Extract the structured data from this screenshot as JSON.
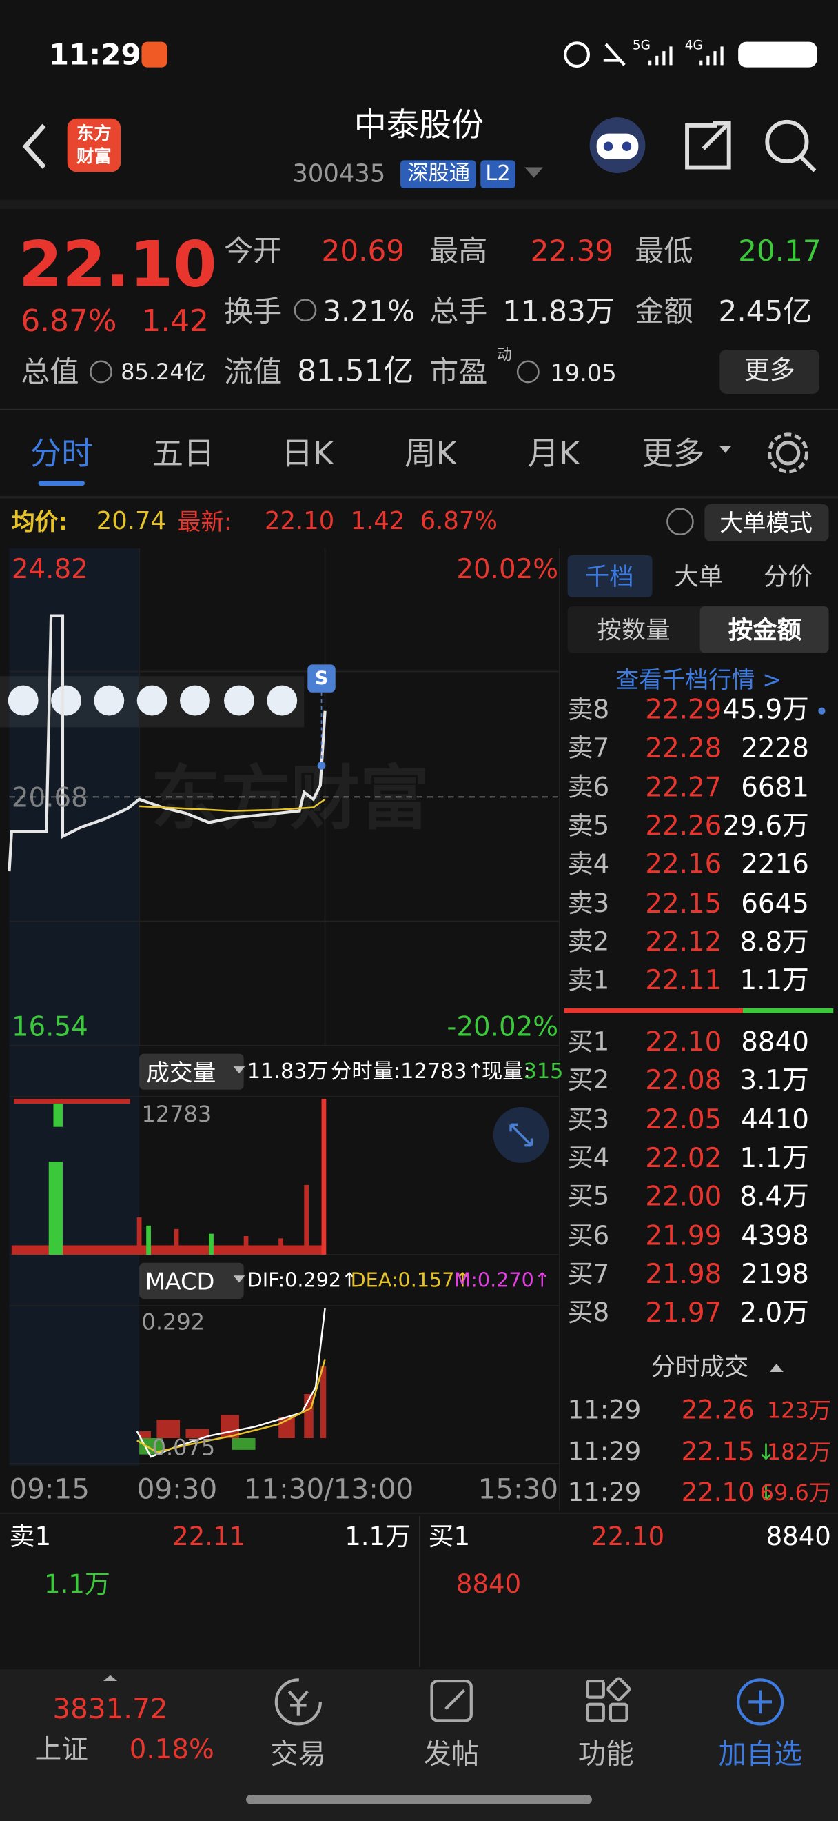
{
  "status_bar": {
    "time": "11:29",
    "network1": "5G",
    "network2": "4G"
  },
  "header": {
    "logo_lines": [
      "东方",
      "财富"
    ],
    "title": "中泰股份",
    "code": "300435",
    "tag": "深股通",
    "level": "L2"
  },
  "quote": {
    "price": "22.10",
    "change_pct": "6.87%",
    "change": "1.42",
    "stats": [
      {
        "label": "今开",
        "value": "20.69"
      },
      {
        "label": "最高",
        "value": "22.39"
      },
      {
        "label": "最低",
        "value": "20.17"
      },
      {
        "label": "换手",
        "value": "3.21%"
      },
      {
        "label": "总手",
        "value": "11.83万"
      },
      {
        "label": "金额",
        "value": "2.45亿"
      },
      {
        "label": "总值",
        "value": "85.24亿"
      },
      {
        "label": "流值",
        "value": "81.51亿"
      },
      {
        "label": "市盈",
        "sup": "动",
        "value": "19.05"
      }
    ],
    "more": "更多"
  },
  "tabs": [
    "分时",
    "五日",
    "日K",
    "周K",
    "月K",
    "更多"
  ],
  "info_bar": {
    "avg_label": "均价:",
    "avg": "20.74",
    "latest_label": "最新:",
    "latest": "22.10",
    "change": "1.42",
    "pct": "6.87%",
    "mode": "大单模式"
  },
  "price_chart": {
    "y_top": "24.82",
    "y_top_pct": "20.02%",
    "y_mid": "20.68",
    "y_bottom": "16.54",
    "y_bottom_pct": "-20.02%",
    "marker": "S",
    "watermark": "东方财富"
  },
  "volume": {
    "selector": "成交量",
    "total": "11.83万",
    "period": "分时量:12783↑",
    "now_label": "现量:",
    "now": "315",
    "max": "12783"
  },
  "macd": {
    "selector": "MACD",
    "dif": "DIF:0.292↑",
    "dea": "DEA:0.157↑",
    "m": "M:0.270↑",
    "max": "0.292",
    "min": "0.075"
  },
  "x_labels": [
    "09:15",
    "09:30",
    "11:30/13:00",
    "15:30"
  ],
  "order_book": {
    "tabs": [
      "千档",
      "大单",
      "分价"
    ],
    "sub_tabs": [
      "按数量",
      "按金额"
    ],
    "link": "查看千档行情 >",
    "asks": [
      {
        "label": "卖8",
        "price": "22.29",
        "volume": "45.9万"
      },
      {
        "label": "卖7",
        "price": "22.28",
        "volume": "2228"
      },
      {
        "label": "卖6",
        "price": "22.27",
        "volume": "6681"
      },
      {
        "label": "卖5",
        "price": "22.26",
        "volume": "29.6万"
      },
      {
        "label": "卖4",
        "price": "22.16",
        "volume": "2216"
      },
      {
        "label": "卖3",
        "price": "22.15",
        "volume": "6645"
      },
      {
        "label": "卖2",
        "price": "22.12",
        "volume": "8.8万"
      },
      {
        "label": "卖1",
        "price": "22.11",
        "volume": "1.1万"
      }
    ],
    "bids": [
      {
        "label": "买1",
        "price": "22.10",
        "volume": "8840"
      },
      {
        "label": "买2",
        "price": "22.08",
        "volume": "3.1万"
      },
      {
        "label": "买3",
        "price": "22.05",
        "volume": "4410"
      },
      {
        "label": "买4",
        "price": "22.02",
        "volume": "1.1万"
      },
      {
        "label": "买5",
        "price": "22.00",
        "volume": "8.4万"
      },
      {
        "label": "买6",
        "price": "21.99",
        "volume": "4398"
      },
      {
        "label": "买7",
        "price": "21.98",
        "volume": "2198"
      },
      {
        "label": "买8",
        "price": "21.97",
        "volume": "2.0万"
      }
    ]
  },
  "trades": {
    "title": "分时成交",
    "rows": [
      {
        "time": "11:29",
        "price": "22.26",
        "dir": "",
        "volume": "123万"
      },
      {
        "time": "11:29",
        "price": "22.15",
        "dir": "↓",
        "volume": "182万"
      },
      {
        "time": "11:29",
        "price": "22.10",
        "dir": "↓",
        "volume": "69.6万"
      }
    ]
  },
  "bottom_quote": {
    "ask": {
      "label": "卖1",
      "price": "22.11",
      "volume": "1.1万",
      "detail": "1.1万"
    },
    "bid": {
      "label": "买1",
      "price": "22.10",
      "volume": "8840",
      "detail": "8840"
    }
  },
  "nav": {
    "index_value": "3831.72",
    "index_name": "上证",
    "index_pct": "0.18%",
    "items": [
      "交易",
      "发帖",
      "功能",
      "加自选"
    ]
  }
}
